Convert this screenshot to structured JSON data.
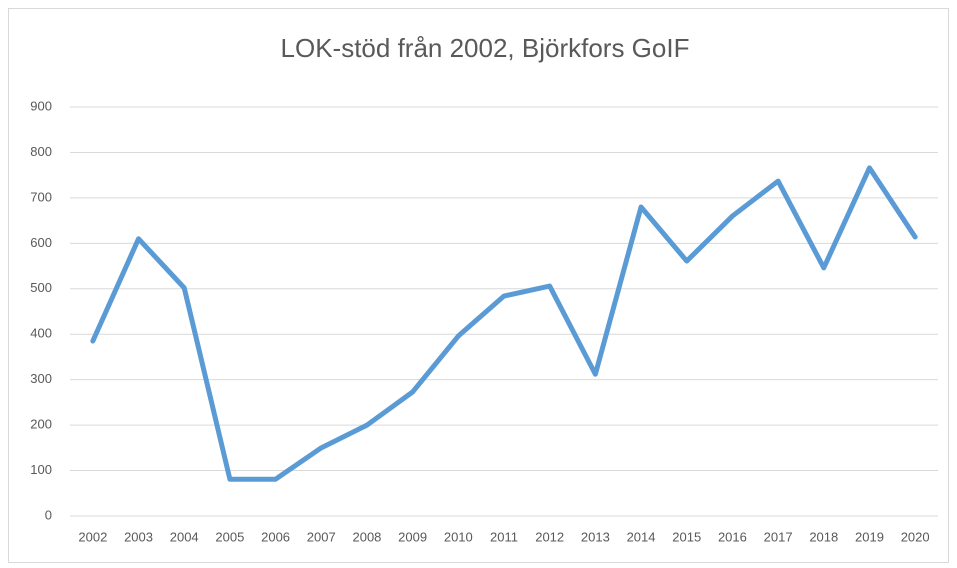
{
  "chart_data": {
    "type": "line",
    "title": "LOK-stöd från 2002, Björkfors GoIF",
    "categories": [
      "2002",
      "2003",
      "2004",
      "2005",
      "2006",
      "2007",
      "2008",
      "2009",
      "2010",
      "2011",
      "2012",
      "2013",
      "2014",
      "2015",
      "2016",
      "2017",
      "2018",
      "2019",
      "2020"
    ],
    "values": [
      385,
      610,
      502,
      81,
      81,
      150,
      200,
      273,
      396,
      484,
      506,
      312,
      680,
      561,
      660,
      737,
      546,
      766,
      614
    ],
    "color": "#5b9bd5",
    "ylim": [
      0,
      900
    ],
    "yticks": [
      0,
      100,
      200,
      300,
      400,
      500,
      600,
      700,
      800,
      900
    ],
    "grid": true
  }
}
